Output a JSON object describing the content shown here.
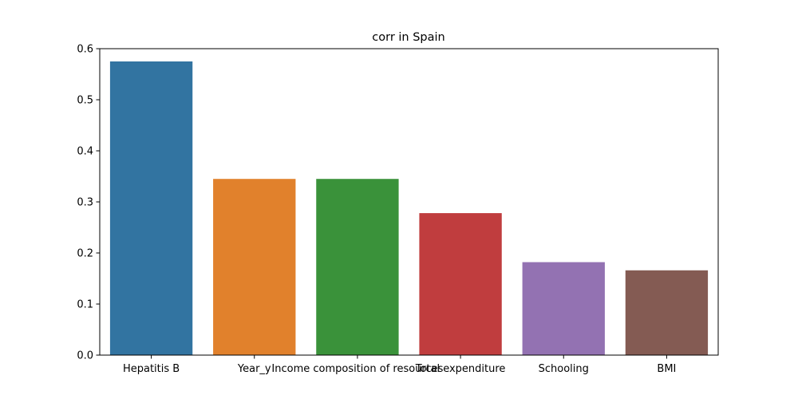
{
  "chart_data": {
    "type": "bar",
    "title": "corr in Spain",
    "xlabel": "",
    "ylabel": "",
    "categories": [
      "Hepatitis B",
      "Year_y",
      "Income composition of resources",
      "Total expenditure",
      "Schooling",
      "BMI"
    ],
    "values": [
      0.575,
      0.345,
      0.345,
      0.278,
      0.182,
      0.166
    ],
    "colors": [
      "#3274a1",
      "#e1812c",
      "#3a923a",
      "#c03d3e",
      "#9372b2",
      "#845b53"
    ],
    "ylim": [
      0,
      0.6
    ],
    "yticks": [
      0.0,
      0.1,
      0.2,
      0.3,
      0.4,
      0.5,
      0.6
    ],
    "ytick_labels": [
      "0.0",
      "0.1",
      "0.2",
      "0.3",
      "0.4",
      "0.5",
      "0.6"
    ],
    "grid": false,
    "legend": "none"
  }
}
